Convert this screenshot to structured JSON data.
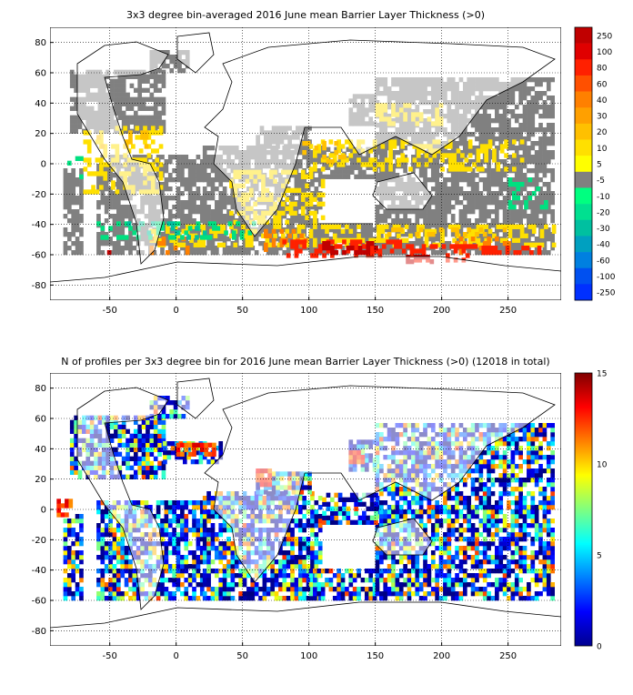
{
  "chart_data": [
    {
      "type": "heatmap",
      "title": "3x3 degree bin-averaged 2016 June mean Barrier Layer Thickness (>0)",
      "xlabel": "",
      "ylabel": "",
      "xlim": [
        -95,
        290
      ],
      "ylim": [
        -90,
        90
      ],
      "x_ticks": [
        -50,
        0,
        50,
        100,
        150,
        200,
        250
      ],
      "y_ticks": [
        -80,
        -60,
        -40,
        -20,
        0,
        20,
        40,
        60,
        80
      ],
      "grid": true,
      "colorbar": {
        "labels": [
          "250",
          "100",
          "80",
          "60",
          "40",
          "30",
          "20",
          "10",
          "5",
          "-5",
          "-10",
          "-20",
          "-30",
          "-40",
          "-60",
          "-100",
          "-250"
        ],
        "colors": [
          "#c00000",
          "#e00000",
          "#ff2000",
          "#ff5000",
          "#ff8000",
          "#ffa000",
          "#ffc000",
          "#ffe000",
          "#ffff00",
          "#808080",
          "#00ff80",
          "#00e090",
          "#00c0a0",
          "#00a0c0",
          "#0080e0",
          "#0050f0",
          "#0030ff"
        ]
      },
      "layer_colors": {
        "gray": "#808080",
        "yellow": "#ffe000",
        "gold": "#ffc000",
        "orange": "#ff8000",
        "red": "#ff2000",
        "darkred": "#c00000",
        "green": "#00e080",
        "teal": "#00c0a0"
      },
      "series": [
        {
          "kind": "gray",
          "density": 0.78,
          "regions": [
            [
              -80,
              20,
              -10,
              60
            ],
            [
              -60,
              -60,
              20,
              5
            ],
            [
              -85,
              -60,
              -70,
              -5
            ],
            [
              20,
              -60,
              110,
              10
            ],
            [
              60,
              10,
              100,
              25
            ],
            [
              100,
              -60,
              150,
              -40
            ],
            [
              150,
              -60,
              285,
              55
            ],
            [
              110,
              -10,
              150,
              10
            ],
            [
              130,
              25,
              150,
              45
            ],
            [
              -20,
              60,
              10,
              75
            ]
          ]
        },
        {
          "kind": "yellow",
          "density": 0.4,
          "regions": [
            [
              -70,
              -20,
              -10,
              25
            ],
            [
              40,
              -40,
              110,
              -5
            ],
            [
              100,
              -5,
              260,
              15
            ],
            [
              -20,
              -55,
              285,
              -42
            ],
            [
              150,
              25,
              200,
              40
            ]
          ]
        },
        {
          "kind": "gold",
          "density": 0.25,
          "regions": [
            [
              -60,
              10,
              -20,
              20
            ],
            [
              95,
              0,
              130,
              15
            ],
            [
              150,
              -48,
              250,
              -42
            ]
          ]
        },
        {
          "kind": "orange",
          "density": 0.25,
          "regions": [
            [
              -20,
              -60,
              10,
              -50
            ],
            [
              60,
              -58,
              100,
              -45
            ],
            [
              210,
              -60,
              250,
              -50
            ]
          ]
        },
        {
          "kind": "red",
          "density": 0.45,
          "regions": [
            [
              80,
              -62,
              170,
              -50
            ],
            [
              170,
              -65,
              230,
              -55
            ],
            [
              230,
              -60,
              275,
              -55
            ]
          ]
        },
        {
          "kind": "darkred",
          "density": 0.5,
          "regions": [
            [
              110,
              -60,
              150,
              -52
            ],
            [
              170,
              -66,
              200,
              -60
            ],
            [
              -55,
              -60,
              -50,
              -56
            ]
          ]
        },
        {
          "kind": "green",
          "density": 0.3,
          "regions": [
            [
              -60,
              -50,
              60,
              -40
            ],
            [
              -85,
              -10,
              -70,
              5
            ],
            [
              250,
              -30,
              280,
              -10
            ]
          ]
        },
        {
          "kind": "teal",
          "density": 0.12,
          "regions": [
            [
              -40,
              -50,
              30,
              -40
            ]
          ]
        }
      ]
    },
    {
      "type": "heatmap",
      "title": "N of profiles per 3x3 degree bin for 2016 June mean Barrier Layer Thickness (>0) (12018 in total)",
      "xlabel": "",
      "ylabel": "",
      "xlim": [
        -95,
        290
      ],
      "ylim": [
        -90,
        90
      ],
      "x_ticks": [
        -50,
        0,
        50,
        100,
        150,
        200,
        250
      ],
      "y_ticks": [
        -80,
        -60,
        -40,
        -20,
        0,
        20,
        40,
        60,
        80
      ],
      "grid": true,
      "colorbar": {
        "min": 0,
        "max": 15,
        "ticks": [
          "0",
          "5",
          "10",
          "15"
        ],
        "colormap": "jet"
      },
      "total_profiles": "12018",
      "series": [
        {
          "kind": "counts",
          "density": 0.75,
          "regions": [
            [
              -80,
              20,
              -10,
              60
            ],
            [
              -60,
              -60,
              20,
              5
            ],
            [
              -85,
              -60,
              -70,
              -5
            ],
            [
              20,
              -60,
              110,
              10
            ],
            [
              60,
              10,
              100,
              25
            ],
            [
              100,
              -60,
              150,
              -40
            ],
            [
              150,
              -60,
              285,
              55
            ],
            [
              110,
              -10,
              150,
              10
            ],
            [
              130,
              25,
              150,
              45
            ],
            [
              -20,
              60,
              10,
              75
            ],
            [
              -10,
              30,
              35,
              45
            ]
          ]
        },
        {
          "kind": "hotspot",
          "value": 14,
          "regions": [
            [
              0,
              35,
              30,
              42
            ],
            [
              60,
              15,
              70,
              25
            ],
            [
              130,
              30,
              140,
              38
            ],
            [
              -90,
              -5,
              -80,
              5
            ]
          ]
        }
      ]
    }
  ]
}
